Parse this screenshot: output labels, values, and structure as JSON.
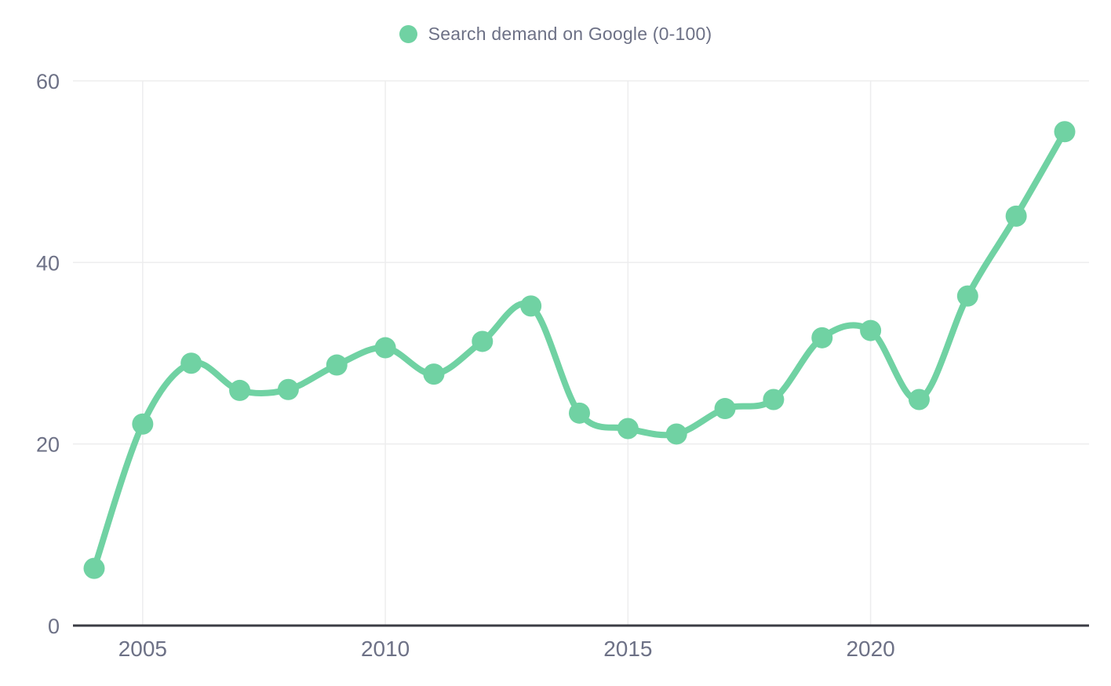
{
  "legend": {
    "label": "Search demand on Google (0-100)"
  },
  "chart_data": {
    "type": "line",
    "title": "",
    "xlabel": "",
    "ylabel": "",
    "x": [
      2004,
      2005,
      2006,
      2007,
      2008,
      2009,
      2010,
      2011,
      2012,
      2013,
      2014,
      2015,
      2016,
      2017,
      2018,
      2019,
      2020,
      2021,
      2022,
      2023,
      2024
    ],
    "series": [
      {
        "name": "Search demand on Google (0-100)",
        "values": [
          6.3,
          22.2,
          28.9,
          25.9,
          26.0,
          28.7,
          30.6,
          27.7,
          31.3,
          35.2,
          23.4,
          21.7,
          21.1,
          23.9,
          24.9,
          31.7,
          32.5,
          24.9,
          36.3,
          45.1,
          54.4
        ]
      }
    ],
    "ylim": [
      0,
      60
    ],
    "yticks": [
      "0",
      "20",
      "40",
      "60"
    ],
    "ytick_values": [
      0,
      20,
      40,
      60
    ],
    "xticks": [
      "2005",
      "2010",
      "2015",
      "2020"
    ],
    "xtick_values": [
      2005,
      2010,
      2015,
      2020
    ],
    "grid": true,
    "legend_position": "top-center",
    "smooth": true,
    "colors": {
      "line": "#70d2a3",
      "marker": "#70d2a3",
      "axis": "#3b3d45",
      "gridline": "#ededee",
      "tick_label": "#6d7186"
    }
  }
}
